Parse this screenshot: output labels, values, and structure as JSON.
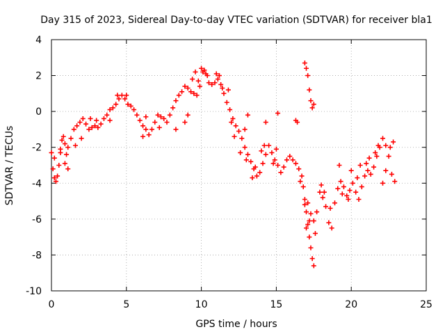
{
  "chart_data": {
    "type": "scatter",
    "title": "Day 315 of 2023, Sidereal Day-to-day VTEC variation (SDTVAR) for receiver bla1",
    "xlabel": "GPS time / hours",
    "ylabel": "SDTVAR / TECUs",
    "xlim": [
      0,
      25
    ],
    "ylim": [
      -10,
      4
    ],
    "x_ticks": [
      0,
      5,
      10,
      15,
      20,
      25
    ],
    "x_tick_labels": [
      "0",
      "5",
      "10",
      "15",
      "20",
      "25"
    ],
    "y_ticks": [
      -10,
      -8,
      -6,
      -4,
      -2,
      0,
      2,
      4
    ],
    "y_tick_labels": [
      "-10",
      "-8",
      "-6",
      "-4",
      "-2",
      "0",
      "2",
      "4"
    ],
    "grid": true,
    "marker": "+",
    "series": [
      {
        "name": "SDTVAR",
        "color": "#ff0000",
        "points": [
          [
            0.0,
            -2.3
          ],
          [
            0.1,
            -3.2
          ],
          [
            0.2,
            -3.7
          ],
          [
            0.3,
            -3.9
          ],
          [
            0.4,
            -3.6
          ],
          [
            0.5,
            -3.0
          ],
          [
            0.6,
            -2.3
          ],
          [
            0.7,
            -1.6
          ],
          [
            0.8,
            -1.4
          ],
          [
            0.9,
            -1.8
          ],
          [
            1.0,
            -2.4
          ],
          [
            1.1,
            -2.0
          ],
          [
            1.3,
            -1.5
          ],
          [
            1.5,
            -1.0
          ],
          [
            1.7,
            -0.8
          ],
          [
            1.9,
            -0.6
          ],
          [
            2.1,
            -0.4
          ],
          [
            2.3,
            -0.7
          ],
          [
            2.5,
            -1.0
          ],
          [
            2.7,
            -0.9
          ],
          [
            2.9,
            -0.8
          ],
          [
            3.1,
            -0.9
          ],
          [
            3.3,
            -0.7
          ],
          [
            3.5,
            -0.4
          ],
          [
            3.7,
            -0.2
          ],
          [
            3.9,
            0.1
          ],
          [
            4.1,
            0.2
          ],
          [
            4.3,
            0.4
          ],
          [
            4.5,
            0.7
          ],
          [
            4.7,
            0.9
          ],
          [
            4.9,
            0.7
          ],
          [
            5.1,
            0.4
          ],
          [
            5.3,
            0.3
          ],
          [
            5.5,
            0.1
          ],
          [
            5.7,
            -0.2
          ],
          [
            5.9,
            -0.5
          ],
          [
            6.1,
            -0.8
          ],
          [
            6.3,
            -1.0
          ],
          [
            6.5,
            -1.3
          ],
          [
            6.7,
            -1.0
          ],
          [
            6.9,
            -0.6
          ],
          [
            7.1,
            -0.2
          ],
          [
            7.3,
            -0.3
          ],
          [
            7.5,
            -0.4
          ],
          [
            7.7,
            -0.6
          ],
          [
            7.9,
            -0.2
          ],
          [
            8.1,
            0.2
          ],
          [
            8.3,
            0.6
          ],
          [
            8.5,
            0.9
          ],
          [
            8.7,
            1.1
          ],
          [
            8.9,
            1.4
          ],
          [
            9.1,
            1.3
          ],
          [
            9.3,
            1.1
          ],
          [
            9.5,
            1.0
          ],
          [
            9.7,
            0.9
          ],
          [
            9.9,
            1.4
          ],
          [
            10.1,
            2.2
          ],
          [
            10.3,
            2.1
          ],
          [
            10.5,
            1.6
          ],
          [
            10.7,
            1.5
          ],
          [
            10.9,
            1.6
          ],
          [
            11.1,
            1.8
          ],
          [
            11.3,
            1.5
          ],
          [
            11.5,
            1.0
          ],
          [
            11.7,
            0.5
          ],
          [
            11.9,
            0.1
          ],
          [
            12.1,
            -0.4
          ],
          [
            12.3,
            -0.8
          ],
          [
            12.5,
            -1.1
          ],
          [
            12.7,
            -1.5
          ],
          [
            12.9,
            -2.0
          ],
          [
            13.1,
            -2.4
          ],
          [
            13.3,
            -2.8
          ],
          [
            13.5,
            -3.2
          ],
          [
            13.7,
            -3.6
          ],
          [
            13.9,
            -3.4
          ],
          [
            14.1,
            -2.9
          ],
          [
            14.3,
            -2.4
          ],
          [
            14.5,
            -1.9
          ],
          [
            14.7,
            -2.3
          ],
          [
            14.9,
            -2.7
          ],
          [
            15.1,
            -3.0
          ],
          [
            15.3,
            -3.4
          ],
          [
            15.5,
            -3.1
          ],
          [
            15.7,
            -2.7
          ],
          [
            15.9,
            -2.5
          ],
          [
            16.1,
            -2.7
          ],
          [
            16.3,
            -2.9
          ],
          [
            16.5,
            -3.2
          ],
          [
            16.7,
            -3.6
          ],
          [
            16.8,
            -4.2
          ],
          [
            16.9,
            -4.9
          ],
          [
            17.0,
            -5.6
          ],
          [
            17.1,
            -6.3
          ],
          [
            17.2,
            -7.0
          ],
          [
            17.3,
            -7.6
          ],
          [
            17.4,
            -8.2
          ],
          [
            17.5,
            -8.6
          ],
          [
            17.6,
            -6.8
          ],
          [
            17.7,
            -5.6
          ],
          [
            17.9,
            -4.5
          ],
          [
            18.1,
            -4.8
          ],
          [
            18.3,
            -5.3
          ],
          [
            18.5,
            -6.2
          ],
          [
            18.7,
            -6.5
          ],
          [
            18.9,
            -5.1
          ],
          [
            19.1,
            -4.3
          ],
          [
            19.3,
            -3.9
          ],
          [
            19.5,
            -4.2
          ],
          [
            19.7,
            -4.7
          ],
          [
            19.9,
            -4.4
          ],
          [
            20.1,
            -4.0
          ],
          [
            20.3,
            -4.5
          ],
          [
            20.5,
            -4.9
          ],
          [
            20.7,
            -4.2
          ],
          [
            20.9,
            -3.6
          ],
          [
            21.1,
            -3.3
          ],
          [
            21.3,
            -3.5
          ],
          [
            21.5,
            -3.1
          ],
          [
            21.7,
            -2.5
          ],
          [
            21.9,
            -2.0
          ],
          [
            22.1,
            -1.5
          ],
          [
            22.3,
            -1.9
          ],
          [
            22.5,
            -2.5
          ],
          [
            22.7,
            -3.5
          ],
          [
            22.9,
            -3.9
          ],
          [
            22.1,
            -4.0
          ],
          [
            22.3,
            -3.3
          ],
          [
            22.6,
            -2.0
          ],
          [
            22.8,
            -1.7
          ],
          [
            16.9,
            2.7
          ],
          [
            17.0,
            2.4
          ],
          [
            17.1,
            2.0
          ],
          [
            17.2,
            1.2
          ],
          [
            17.3,
            0.6
          ],
          [
            17.4,
            0.2
          ],
          [
            17.5,
            0.4
          ],
          [
            16.3,
            -0.5
          ],
          [
            16.4,
            -0.6
          ],
          [
            15.1,
            -0.1
          ],
          [
            14.3,
            -0.6
          ],
          [
            13.1,
            -0.2
          ],
          [
            12.9,
            -1.0
          ],
          [
            9.1,
            -0.2
          ],
          [
            8.9,
            -0.6
          ],
          [
            8.3,
            -1.0
          ],
          [
            7.2,
            -0.9
          ],
          [
            6.3,
            -0.3
          ],
          [
            6.1,
            -1.4
          ],
          [
            0.2,
            -2.6
          ],
          [
            0.6,
            -2.1
          ],
          [
            0.9,
            -2.9
          ],
          [
            1.1,
            -3.2
          ],
          [
            1.6,
            -1.9
          ],
          [
            2.0,
            -1.5
          ],
          [
            5.0,
            0.9
          ],
          [
            4.4,
            0.9
          ],
          [
            3.9,
            -0.5
          ],
          [
            3.0,
            -0.5
          ],
          [
            2.6,
            -0.4
          ],
          [
            10.0,
            2.4
          ],
          [
            10.2,
            2.3
          ],
          [
            10.4,
            2.0
          ],
          [
            9.8,
            1.7
          ],
          [
            9.6,
            2.2
          ],
          [
            9.4,
            1.8
          ],
          [
            11.0,
            2.1
          ],
          [
            11.2,
            2.0
          ],
          [
            11.4,
            1.3
          ],
          [
            11.8,
            1.2
          ],
          [
            12.0,
            -0.6
          ],
          [
            12.2,
            -1.4
          ],
          [
            12.6,
            -2.3
          ],
          [
            13.0,
            -2.7
          ],
          [
            13.4,
            -3.7
          ],
          [
            13.6,
            -3.1
          ],
          [
            14.0,
            -2.2
          ],
          [
            14.2,
            -1.9
          ],
          [
            14.8,
            -2.9
          ],
          [
            15.0,
            -2.1
          ],
          [
            16.6,
            -3.9
          ],
          [
            16.9,
            -5.2
          ],
          [
            17.0,
            -6.5
          ],
          [
            17.1,
            -5.1
          ],
          [
            17.2,
            -6.1
          ],
          [
            17.3,
            -5.7
          ],
          [
            17.5,
            -6.1
          ],
          [
            18.0,
            -4.1
          ],
          [
            18.2,
            -4.5
          ],
          [
            18.6,
            -5.4
          ],
          [
            19.2,
            -3.0
          ],
          [
            19.4,
            -4.6
          ],
          [
            19.8,
            -4.9
          ],
          [
            20.0,
            -3.3
          ],
          [
            20.4,
            -3.7
          ],
          [
            20.6,
            -3.0
          ],
          [
            21.0,
            -2.9
          ],
          [
            21.2,
            -2.6
          ],
          [
            21.6,
            -2.3
          ],
          [
            21.8,
            -1.9
          ]
        ]
      }
    ]
  }
}
